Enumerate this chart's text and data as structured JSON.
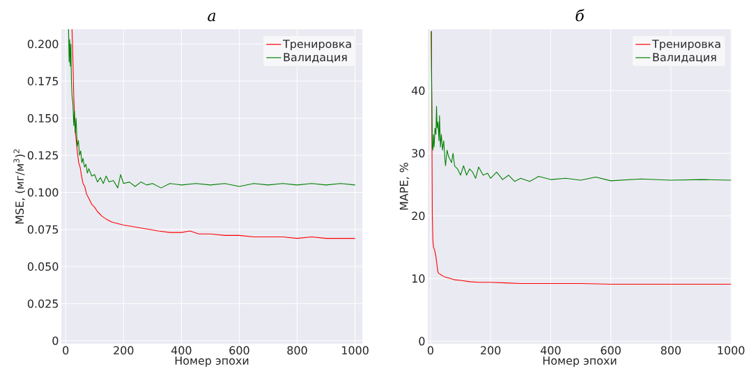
{
  "chart_data": [
    {
      "type": "line",
      "title": "а",
      "xlabel": "Номер эпохи",
      "ylabel": "MSE, (мг/м$^{3}$)$^{2}$",
      "xlim": [
        -15,
        1025
      ],
      "ylim": [
        -0.002,
        0.21
      ],
      "xticks": [
        0,
        200,
        400,
        600,
        800,
        1000
      ],
      "yticks": [
        0,
        {
          "value": 0.025,
          "label": "0.025"
        },
        {
          "value": 0.05,
          "label": "0.050"
        },
        {
          "value": 0.075,
          "label": "0.075"
        },
        {
          "value": 0.1,
          "label": "0.100"
        },
        {
          "value": 0.125,
          "label": "0.125"
        },
        {
          "value": 0.15,
          "label": "0.150"
        },
        {
          "value": 0.175,
          "label": "0.175"
        },
        {
          "value": 0.2,
          "label": "0.200"
        }
      ],
      "grid": true,
      "legend": "top right",
      "series": [
        {
          "name": "Тренировка",
          "color": "#ff0000",
          "x": [
            22,
            25,
            28,
            31,
            35,
            40,
            45,
            50,
            55,
            60,
            66,
            72,
            80,
            90,
            100,
            110,
            125,
            140,
            160,
            180,
            200,
            230,
            260,
            290,
            320,
            360,
            400,
            430,
            460,
            500,
            550,
            600,
            650,
            700,
            750,
            800,
            850,
            900,
            950,
            1000
          ],
          "values": [
            0.21,
            0.19,
            0.165,
            0.15,
            0.138,
            0.128,
            0.12,
            0.117,
            0.111,
            0.106,
            0.104,
            0.099,
            0.096,
            0.092,
            0.09,
            0.087,
            0.084,
            0.082,
            0.08,
            0.079,
            0.078,
            0.077,
            0.076,
            0.075,
            0.074,
            0.073,
            0.073,
            0.074,
            0.072,
            0.072,
            0.071,
            0.071,
            0.07,
            0.07,
            0.07,
            0.069,
            0.07,
            0.069,
            0.069,
            0.069
          ]
        },
        {
          "name": "Валидация",
          "color": "#008000",
          "x": [
            10,
            12,
            14,
            16,
            18,
            20,
            22,
            25,
            28,
            30,
            33,
            36,
            40,
            44,
            48,
            52,
            56,
            60,
            65,
            70,
            75,
            80,
            90,
            100,
            110,
            120,
            130,
            140,
            150,
            165,
            180,
            190,
            200,
            220,
            240,
            260,
            280,
            300,
            330,
            360,
            400,
            450,
            500,
            550,
            600,
            650,
            700,
            750,
            800,
            850,
            900,
            950,
            1000
          ],
          "values": [
            0.21,
            0.188,
            0.203,
            0.185,
            0.2,
            0.175,
            0.165,
            0.16,
            0.145,
            0.155,
            0.14,
            0.15,
            0.131,
            0.135,
            0.125,
            0.128,
            0.12,
            0.123,
            0.117,
            0.119,
            0.113,
            0.116,
            0.111,
            0.112,
            0.107,
            0.11,
            0.106,
            0.111,
            0.107,
            0.108,
            0.103,
            0.112,
            0.106,
            0.107,
            0.104,
            0.107,
            0.105,
            0.106,
            0.103,
            0.106,
            0.105,
            0.106,
            0.105,
            0.106,
            0.104,
            0.106,
            0.105,
            0.106,
            0.105,
            0.106,
            0.105,
            0.106,
            0.105
          ]
        }
      ]
    },
    {
      "type": "line",
      "title": "б",
      "xlabel": "Номер эпохи",
      "ylabel": "MAPE, %",
      "xlim": [
        -9,
        1002
      ],
      "ylim": [
        -0.4,
        49.8
      ],
      "xticks": [
        0,
        200,
        400,
        600,
        800,
        1000
      ],
      "yticks": [
        0,
        10,
        20,
        30,
        40
      ],
      "grid": true,
      "legend": "top right",
      "series": [
        {
          "name": "Тренировка",
          "color": "#ff0000",
          "x": [
            3,
            4,
            5,
            6,
            8,
            10,
            14,
            18,
            22,
            25,
            28,
            35,
            45,
            60,
            80,
            100,
            130,
            160,
            200,
            250,
            300,
            400,
            500,
            600,
            700,
            800,
            900,
            1000
          ],
          "values": [
            49.5,
            40,
            30,
            20,
            16,
            15,
            14.5,
            13.5,
            12,
            11,
            10.8,
            10.6,
            10.3,
            10.1,
            9.8,
            9.7,
            9.5,
            9.4,
            9.4,
            9.3,
            9.2,
            9.2,
            9.2,
            9.1,
            9.1,
            9.1,
            9.1,
            9.1
          ]
        },
        {
          "name": "Валидация",
          "color": "#008000",
          "x": [
            2,
            4,
            6,
            8,
            10,
            12,
            15,
            18,
            20,
            22,
            25,
            28,
            30,
            33,
            36,
            40,
            44,
            48,
            50,
            55,
            60,
            65,
            70,
            75,
            80,
            90,
            100,
            110,
            120,
            130,
            140,
            150,
            160,
            175,
            190,
            200,
            220,
            240,
            260,
            280,
            300,
            330,
            360,
            400,
            450,
            500,
            550,
            600,
            700,
            800,
            900,
            1000
          ],
          "values": [
            49.5,
            40,
            31,
            30.5,
            33,
            31,
            34,
            33,
            37.5,
            34,
            35,
            32,
            36,
            31,
            33,
            30.5,
            32,
            29,
            28,
            30.5,
            29.5,
            29,
            28.5,
            30,
            28,
            27.5,
            26.5,
            28,
            26.5,
            27.5,
            27,
            26,
            27.8,
            26.5,
            26.8,
            26,
            27,
            25.8,
            26.5,
            25.5,
            26,
            25.5,
            26.3,
            25.8,
            26,
            25.7,
            26.2,
            25.6,
            25.9,
            25.7,
            25.8,
            25.7
          ]
        }
      ]
    }
  ]
}
